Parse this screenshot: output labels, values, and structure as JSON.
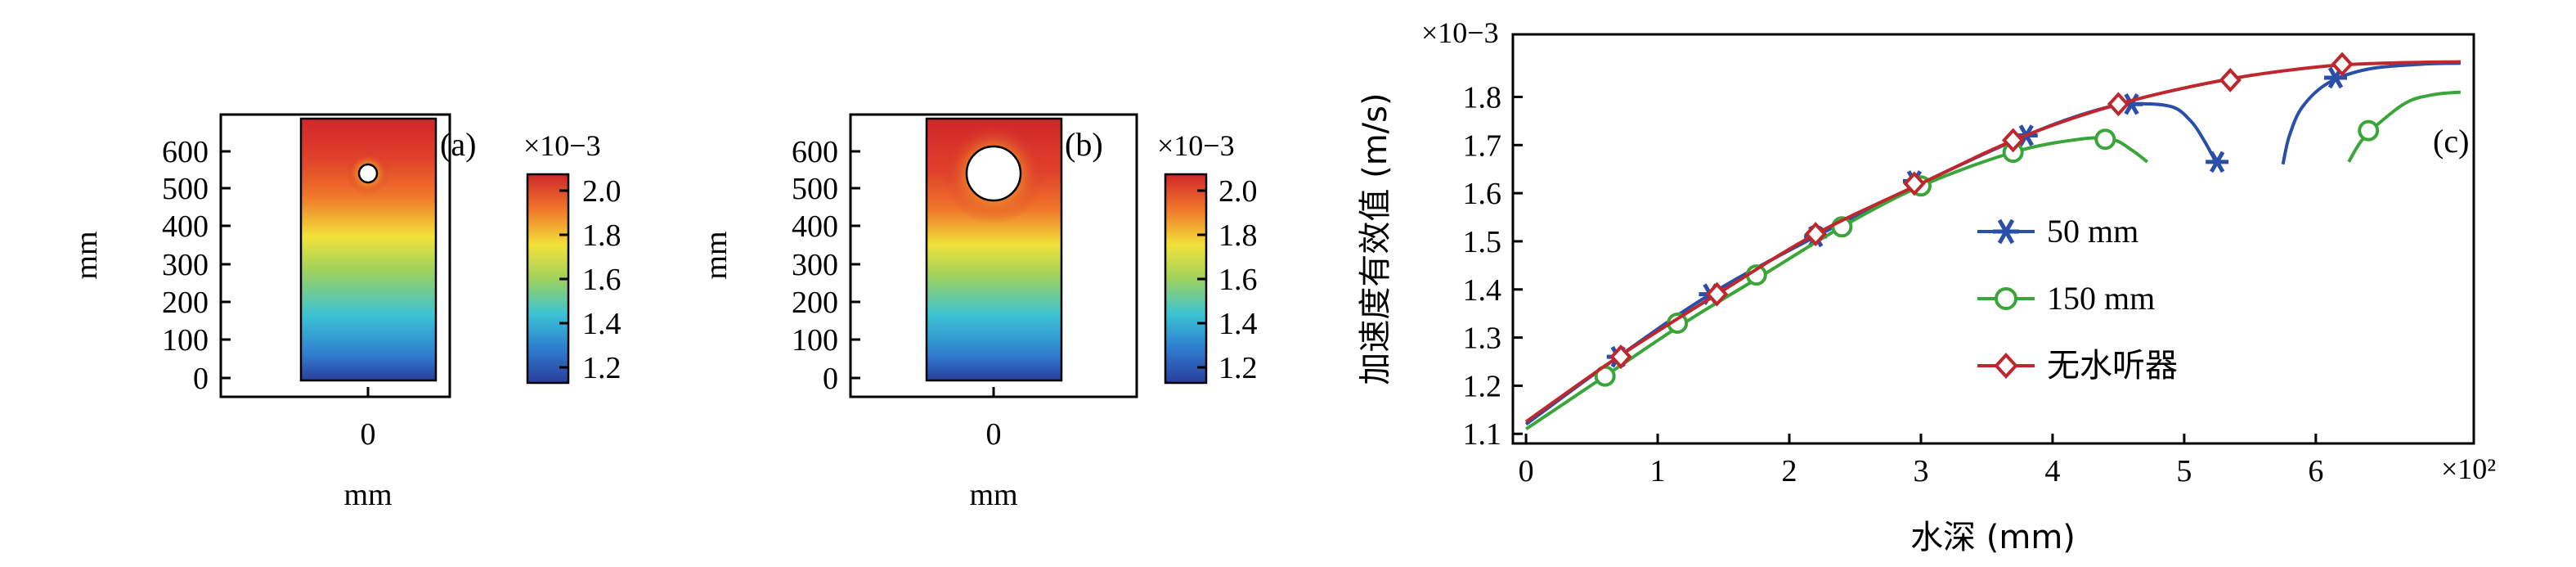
{
  "chart_data": [
    {
      "type": "heatmap",
      "panel_label": "(a)",
      "xlabel": "mm",
      "ylabel": "mm",
      "xticks": [
        "0"
      ],
      "yticks": [
        "0",
        "100",
        "200",
        "300",
        "400",
        "500",
        "600"
      ],
      "ylim": [
        0,
        700
      ],
      "hole_center_mm": 550,
      "hole_diameter_mm": 50,
      "colorbar": {
        "multiplier": "×10−3",
        "ticks": [
          "1.2",
          "1.4",
          "1.6",
          "1.8",
          "2.0"
        ],
        "range": [
          1.15,
          2.1
        ]
      }
    },
    {
      "type": "heatmap",
      "panel_label": "(b)",
      "xlabel": "mm",
      "ylabel": "mm",
      "xticks": [
        "0"
      ],
      "yticks": [
        "0",
        "100",
        "200",
        "300",
        "400",
        "500",
        "600"
      ],
      "ylim": [
        0,
        700
      ],
      "hole_center_mm": 550,
      "hole_diameter_mm": 150,
      "colorbar": {
        "multiplier": "×10−3",
        "ticks": [
          "1.2",
          "1.4",
          "1.6",
          "1.8",
          "2.0"
        ],
        "range": [
          1.15,
          2.1
        ]
      }
    },
    {
      "type": "line",
      "panel_label": "(c)",
      "xlabel": "水深 (mm)",
      "ylabel": "加速度有效值 (m/s)",
      "x_multiplier": "×10²",
      "y_multiplier": "×10−3",
      "xlim": [
        -0.1,
        7.2
      ],
      "ylim": [
        1.08,
        1.93
      ],
      "xticks": [
        "0",
        "1",
        "2",
        "3",
        "4",
        "5",
        "6"
      ],
      "yticks": [
        "1.1",
        "1.2",
        "1.3",
        "1.4",
        "1.5",
        "1.6",
        "1.7",
        "1.8"
      ],
      "legend": "left-middle",
      "series": [
        {
          "name": "50 mm",
          "color": "#2a4fa8",
          "marker": "asterisk",
          "segments": [
            [
              [
                0,
                1.12
              ],
              [
                0.7,
                1.26
              ],
              [
                1.4,
                1.39
              ],
              [
                2.2,
                1.51
              ],
              [
                3.0,
                1.62
              ],
              [
                3.8,
                1.72
              ],
              [
                4.3,
                1.77
              ],
              [
                4.6,
                1.785
              ],
              [
                4.9,
                1.78
              ],
              [
                5.05,
                1.75
              ],
              [
                5.15,
                1.71
              ],
              [
                5.25,
                1.66
              ]
            ],
            [
              [
                5.75,
                1.66
              ],
              [
                5.8,
                1.72
              ],
              [
                5.9,
                1.78
              ],
              [
                6.1,
                1.83
              ],
              [
                6.4,
                1.858
              ],
              [
                6.8,
                1.868
              ],
              [
                7.1,
                1.87
              ]
            ]
          ],
          "markers": [
            [
              0.7,
              1.26
            ],
            [
              1.4,
              1.39
            ],
            [
              2.2,
              1.51
            ],
            [
              2.95,
              1.625
            ],
            [
              3.8,
              1.72
            ],
            [
              4.6,
              1.785
            ],
            [
              5.25,
              1.665
            ],
            [
              6.15,
              1.84
            ]
          ]
        },
        {
          "name": "150 mm",
          "color": "#3aa63a",
          "marker": "circle",
          "segments": [
            [
              [
                0,
                1.11
              ],
              [
                0.6,
                1.22
              ],
              [
                1.2,
                1.33
              ],
              [
                1.8,
                1.43
              ],
              [
                2.4,
                1.53
              ],
              [
                3.0,
                1.615
              ],
              [
                3.7,
                1.685
              ],
              [
                4.2,
                1.712
              ],
              [
                4.45,
                1.712
              ],
              [
                4.6,
                1.69
              ],
              [
                4.72,
                1.665
              ]
            ],
            [
              [
                6.25,
                1.665
              ],
              [
                6.35,
                1.71
              ],
              [
                6.5,
                1.75
              ],
              [
                6.7,
                1.79
              ],
              [
                6.9,
                1.805
              ],
              [
                7.1,
                1.81
              ]
            ]
          ],
          "markers": [
            [
              0.6,
              1.22
            ],
            [
              1.15,
              1.33
            ],
            [
              1.75,
              1.43
            ],
            [
              2.4,
              1.53
            ],
            [
              3.0,
              1.615
            ],
            [
              3.7,
              1.685
            ],
            [
              4.4,
              1.712
            ],
            [
              6.4,
              1.73
            ]
          ]
        },
        {
          "name": "无水听器",
          "color": "#c0272d",
          "marker": "diamond",
          "segments": [
            [
              [
                0,
                1.125
              ],
              [
                0.7,
                1.26
              ],
              [
                1.45,
                1.39
              ],
              [
                2.2,
                1.515
              ],
              [
                3.0,
                1.62
              ],
              [
                3.75,
                1.715
              ],
              [
                4.5,
                1.785
              ],
              [
                5.3,
                1.835
              ],
              [
                6.0,
                1.862
              ],
              [
                6.5,
                1.87
              ],
              [
                7.1,
                1.873
              ]
            ]
          ],
          "markers": [
            [
              0.72,
              1.26
            ],
            [
              1.45,
              1.39
            ],
            [
              2.2,
              1.515
            ],
            [
              2.95,
              1.62
            ],
            [
              3.7,
              1.71
            ],
            [
              4.5,
              1.785
            ],
            [
              5.35,
              1.835
            ],
            [
              6.2,
              1.868
            ]
          ]
        }
      ]
    }
  ]
}
